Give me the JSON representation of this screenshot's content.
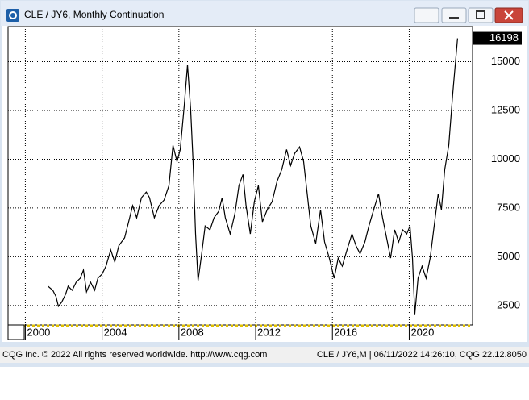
{
  "window": {
    "footer_left": "CQG Inc. © 2022 All rights reserved worldwide. http://www.cqg.com",
    "footer_right": "CLE / JY6,M | 06/11/2022 14:26:10, CQG 22.12.8050"
  },
  "chart_data": {
    "type": "line",
    "title": "CLE / JY6, Monthly Continuation",
    "x": [
      2001.18,
      2001.43,
      2001.6,
      2001.72,
      2001.89,
      2002.1,
      2002.23,
      2002.44,
      2002.65,
      2002.86,
      2003.03,
      2003.19,
      2003.4,
      2003.61,
      2003.78,
      2004.0,
      2004.2,
      2004.45,
      2004.66,
      2004.87,
      2005.17,
      2005.38,
      2005.59,
      2005.8,
      2006.05,
      2006.3,
      2006.47,
      2006.72,
      2006.97,
      2007.23,
      2007.48,
      2007.69,
      2007.9,
      2008.07,
      2008.28,
      2008.45,
      2008.61,
      2008.74,
      2008.87,
      2009.0,
      2009.16,
      2009.37,
      2009.62,
      2009.83,
      2010.08,
      2010.25,
      2010.42,
      2010.67,
      2010.92,
      2011.13,
      2011.34,
      2011.5,
      2011.72,
      2011.93,
      2012.14,
      2012.35,
      2012.6,
      2012.86,
      2013.11,
      2013.36,
      2013.61,
      2013.82,
      2014.03,
      2014.29,
      2014.5,
      2014.71,
      2014.87,
      2015.13,
      2015.38,
      2015.59,
      2015.84,
      2016.09,
      2016.3,
      2016.51,
      2016.76,
      2017.02,
      2017.23,
      2017.44,
      2017.69,
      2017.9,
      2018.15,
      2018.4,
      2018.61,
      2018.82,
      2019.03,
      2019.24,
      2019.45,
      2019.66,
      2019.87,
      2020.04,
      2020.17,
      2020.29,
      2020.46,
      2020.67,
      2020.88,
      2021.09,
      2021.3,
      2021.51,
      2021.68,
      2021.85,
      2022.06,
      2022.27,
      2022.52
    ],
    "series": [
      {
        "name": "CLE / JY6",
        "color": "#000000",
        "values": [
          3490,
          3280,
          2950,
          2460,
          2660,
          3080,
          3490,
          3280,
          3700,
          3900,
          4320,
          3200,
          3700,
          3280,
          3900,
          4110,
          4520,
          5350,
          4730,
          5560,
          5970,
          6790,
          7620,
          7000,
          8030,
          8320,
          8030,
          7000,
          7620,
          7910,
          8650,
          10710,
          9880,
          10500,
          12770,
          14830,
          12570,
          9880,
          6170,
          3780,
          4930,
          6580,
          6380,
          7000,
          7330,
          8030,
          7000,
          6170,
          7210,
          8650,
          9220,
          7620,
          6170,
          7830,
          8650,
          6790,
          7410,
          7830,
          8860,
          9470,
          10500,
          9680,
          10300,
          10630,
          9880,
          8030,
          6580,
          5680,
          7410,
          5760,
          4930,
          3900,
          4930,
          4520,
          5350,
          6170,
          5560,
          5150,
          5760,
          6580,
          7410,
          8230,
          7000,
          5970,
          4930,
          6380,
          5760,
          6380,
          6170,
          6580,
          4930,
          2050,
          3900,
          4520,
          3900,
          4930,
          6580,
          8230,
          7410,
          9470,
          10710,
          13390,
          16198
        ]
      }
    ],
    "last_value": 16198,
    "xlim": [
      1999.1,
      2023.3
    ],
    "xticks": [
      2000,
      2004,
      2008,
      2012,
      2016,
      2020
    ],
    "ylim": [
      1500,
      16800
    ],
    "yticks": [
      2500,
      5000,
      7500,
      10000,
      12500,
      15000
    ],
    "grid": true
  }
}
